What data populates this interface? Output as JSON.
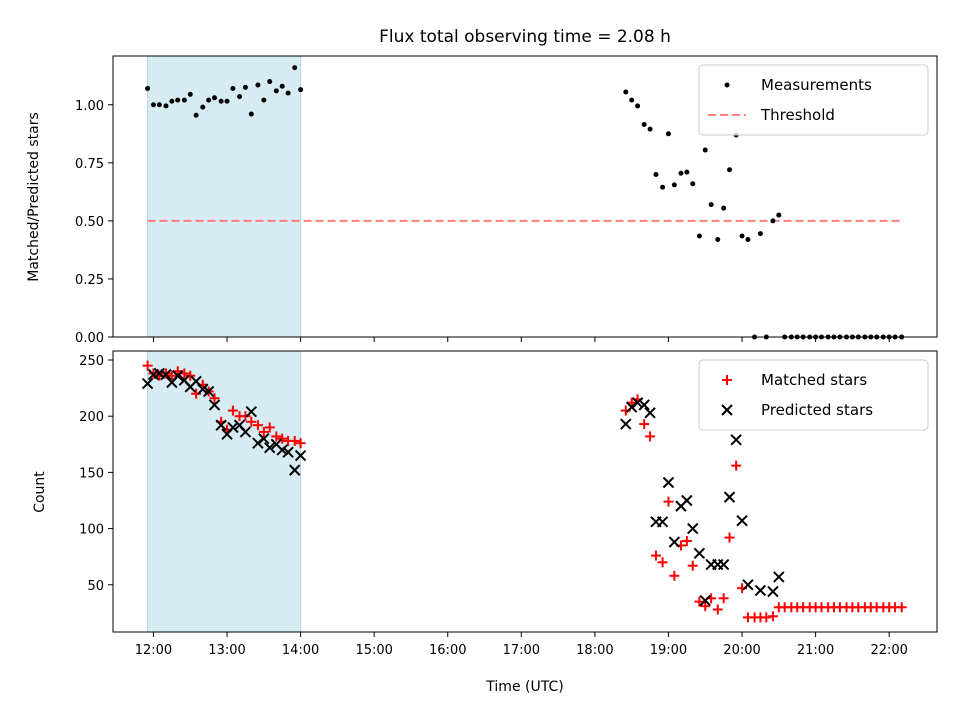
{
  "chart_data": [
    {
      "type": "scatter",
      "title": "Flux total observing time = 2.08 h",
      "ylabel": "Matched/Predicted stars",
      "xlabel": "",
      "x_ticks": [
        "12:00",
        "13:00",
        "14:00",
        "15:00",
        "16:00",
        "17:00",
        "18:00",
        "19:00",
        "20:00",
        "21:00",
        "22:00"
      ],
      "y_ticks": [
        "0.00",
        "0.25",
        "0.50",
        "0.75",
        "1.00"
      ],
      "xlim_hours": [
        11.45,
        22.65
      ],
      "ylim": [
        0,
        1.21
      ],
      "shaded_span_hours": [
        11.92,
        14.0
      ],
      "shaded_color": "#add8e6",
      "threshold": {
        "name": "Threshold",
        "value": 0.5,
        "x_range_hours": [
          11.92,
          22.15
        ],
        "color": "#ff7f7f"
      },
      "legend": {
        "placement": "top-right",
        "entries": [
          "Measurements",
          "Threshold"
        ]
      },
      "series": [
        {
          "name": "Measurements",
          "marker": "dot",
          "color": "#000000",
          "points": [
            [
              11.92,
              1.07
            ],
            [
              12.0,
              1.0
            ],
            [
              12.08,
              1.0
            ],
            [
              12.17,
              0.995
            ],
            [
              12.25,
              1.015
            ],
            [
              12.33,
              1.02
            ],
            [
              12.42,
              1.02
            ],
            [
              12.5,
              1.045
            ],
            [
              12.58,
              0.955
            ],
            [
              12.67,
              0.99
            ],
            [
              12.75,
              1.02
            ],
            [
              12.83,
              1.03
            ],
            [
              12.92,
              1.015
            ],
            [
              13.0,
              1.015
            ],
            [
              13.08,
              1.07
            ],
            [
              13.17,
              1.035
            ],
            [
              13.25,
              1.075
            ],
            [
              13.33,
              0.96
            ],
            [
              13.42,
              1.085
            ],
            [
              13.5,
              1.02
            ],
            [
              13.58,
              1.1
            ],
            [
              13.67,
              1.06
            ],
            [
              13.75,
              1.08
            ],
            [
              13.83,
              1.05
            ],
            [
              13.92,
              1.16
            ],
            [
              14.0,
              1.065
            ],
            [
              18.42,
              1.055
            ],
            [
              18.5,
              1.02
            ],
            [
              18.58,
              0.995
            ],
            [
              18.67,
              0.915
            ],
            [
              18.75,
              0.895
            ],
            [
              18.83,
              0.7
            ],
            [
              18.92,
              0.645
            ],
            [
              19.0,
              0.875
            ],
            [
              19.08,
              0.655
            ],
            [
              19.17,
              0.705
            ],
            [
              19.25,
              0.71
            ],
            [
              19.33,
              0.66
            ],
            [
              19.42,
              0.435
            ],
            [
              19.5,
              0.805
            ],
            [
              19.58,
              0.57
            ],
            [
              19.67,
              0.42
            ],
            [
              19.75,
              0.555
            ],
            [
              19.83,
              0.72
            ],
            [
              19.92,
              0.87
            ],
            [
              20.0,
              0.435
            ],
            [
              20.08,
              0.42
            ],
            [
              20.25,
              0.445
            ],
            [
              20.42,
              0.5
            ],
            [
              20.5,
              0.525
            ],
            [
              20.17,
              0.0
            ],
            [
              20.33,
              0.0
            ],
            [
              20.58,
              0.0
            ],
            [
              20.67,
              0.0
            ],
            [
              20.75,
              0.0
            ],
            [
              20.83,
              0.0
            ],
            [
              20.92,
              0.0
            ],
            [
              21.0,
              0.0
            ],
            [
              21.08,
              0.0
            ],
            [
              21.17,
              0.0
            ],
            [
              21.25,
              0.0
            ],
            [
              21.33,
              0.0
            ],
            [
              21.42,
              0.0
            ],
            [
              21.5,
              0.0
            ],
            [
              21.58,
              0.0
            ],
            [
              21.67,
              0.0
            ],
            [
              21.75,
              0.0
            ],
            [
              21.83,
              0.0
            ],
            [
              21.92,
              0.0
            ],
            [
              22.0,
              0.0
            ],
            [
              22.08,
              0.0
            ],
            [
              22.17,
              0.0
            ]
          ]
        }
      ]
    },
    {
      "type": "scatter",
      "title": "",
      "ylabel": "Count",
      "xlabel": "Time (UTC)",
      "x_ticks": [
        "12:00",
        "13:00",
        "14:00",
        "15:00",
        "16:00",
        "17:00",
        "18:00",
        "19:00",
        "20:00",
        "21:00",
        "22:00"
      ],
      "y_ticks": [
        "50",
        "100",
        "150",
        "200",
        "250"
      ],
      "xlim_hours": [
        11.45,
        22.65
      ],
      "ylim": [
        8,
        258
      ],
      "shaded_span_hours": [
        11.92,
        14.0
      ],
      "shaded_color": "#add8e6",
      "legend": {
        "placement": "top-right",
        "entries": [
          "Matched stars",
          "Predicted stars"
        ]
      },
      "series": [
        {
          "name": "Matched stars",
          "marker": "plus",
          "color": "#ff0000",
          "points": [
            [
              11.92,
              245
            ],
            [
              12.0,
              238
            ],
            [
              12.08,
              236
            ],
            [
              12.17,
              238
            ],
            [
              12.25,
              236
            ],
            [
              12.33,
              240
            ],
            [
              12.42,
              238
            ],
            [
              12.5,
              236
            ],
            [
              12.58,
              220
            ],
            [
              12.67,
              228
            ],
            [
              12.75,
              222
            ],
            [
              12.83,
              216
            ],
            [
              12.92,
              195
            ],
            [
              13.0,
              188
            ],
            [
              13.08,
              205
            ],
            [
              13.17,
              200
            ],
            [
              13.25,
              200
            ],
            [
              13.33,
              195
            ],
            [
              13.42,
              192
            ],
            [
              13.5,
              186
            ],
            [
              13.58,
              190
            ],
            [
              13.67,
              182
            ],
            [
              13.75,
              180
            ],
            [
              13.83,
              178
            ],
            [
              13.92,
              178
            ],
            [
              14.0,
              176
            ],
            [
              18.42,
              205
            ],
            [
              18.5,
              212
            ],
            [
              18.58,
              215
            ],
            [
              18.67,
              193
            ],
            [
              18.75,
              182
            ],
            [
              18.83,
              76
            ],
            [
              18.92,
              70
            ],
            [
              19.0,
              124
            ],
            [
              19.08,
              58
            ],
            [
              19.17,
              85
            ],
            [
              19.25,
              89
            ],
            [
              19.33,
              67
            ],
            [
              19.42,
              35
            ],
            [
              19.5,
              31
            ],
            [
              19.58,
              38
            ],
            [
              19.67,
              28
            ],
            [
              19.75,
              38
            ],
            [
              19.83,
              92
            ],
            [
              19.92,
              156
            ],
            [
              20.0,
              47
            ],
            [
              20.08,
              21
            ],
            [
              20.17,
              21
            ],
            [
              20.25,
              21
            ],
            [
              20.33,
              21
            ],
            [
              20.42,
              22
            ],
            [
              20.5,
              30
            ],
            [
              20.58,
              30
            ],
            [
              20.67,
              30
            ],
            [
              20.75,
              30
            ],
            [
              20.83,
              30
            ],
            [
              20.92,
              30
            ],
            [
              21.0,
              30
            ],
            [
              21.08,
              30
            ],
            [
              21.17,
              30
            ],
            [
              21.25,
              30
            ],
            [
              21.33,
              30
            ],
            [
              21.42,
              30
            ],
            [
              21.5,
              30
            ],
            [
              21.58,
              30
            ],
            [
              21.67,
              30
            ],
            [
              21.75,
              30
            ],
            [
              21.83,
              30
            ],
            [
              21.92,
              30
            ],
            [
              22.0,
              30
            ],
            [
              22.08,
              30
            ],
            [
              22.17,
              30
            ]
          ]
        },
        {
          "name": "Predicted stars",
          "marker": "x",
          "color": "#000000",
          "points": [
            [
              11.92,
              229
            ],
            [
              12.0,
              237
            ],
            [
              12.08,
              238
            ],
            [
              12.17,
              237
            ],
            [
              12.25,
              230
            ],
            [
              12.33,
              236
            ],
            [
              12.42,
              232
            ],
            [
              12.5,
              226
            ],
            [
              12.58,
              231
            ],
            [
              12.67,
              224
            ],
            [
              12.75,
              222
            ],
            [
              12.83,
              210
            ],
            [
              12.92,
              192
            ],
            [
              13.0,
              184
            ],
            [
              13.08,
              190
            ],
            [
              13.17,
              192
            ],
            [
              13.25,
              186
            ],
            [
              13.33,
              204
            ],
            [
              13.42,
              176
            ],
            [
              13.5,
              180
            ],
            [
              13.58,
              172
            ],
            [
              13.67,
              175
            ],
            [
              13.75,
              170
            ],
            [
              13.83,
              168
            ],
            [
              13.92,
              152
            ],
            [
              14.0,
              165
            ],
            [
              18.42,
              193
            ],
            [
              18.5,
              208
            ],
            [
              18.58,
              212
            ],
            [
              18.67,
              210
            ],
            [
              18.75,
              203
            ],
            [
              18.83,
              106
            ],
            [
              18.92,
              106
            ],
            [
              19.0,
              141
            ],
            [
              19.08,
              88
            ],
            [
              19.17,
              120
            ],
            [
              19.25,
              125
            ],
            [
              19.33,
              100
            ],
            [
              19.42,
              78
            ],
            [
              19.5,
              36
            ],
            [
              19.58,
              68
            ],
            [
              19.67,
              68
            ],
            [
              19.75,
              68
            ],
            [
              19.83,
              128
            ],
            [
              19.92,
              179
            ],
            [
              20.0,
              107
            ],
            [
              20.08,
              50
            ],
            [
              20.25,
              45
            ],
            [
              20.42,
              44
            ],
            [
              20.5,
              57
            ]
          ]
        }
      ]
    }
  ]
}
